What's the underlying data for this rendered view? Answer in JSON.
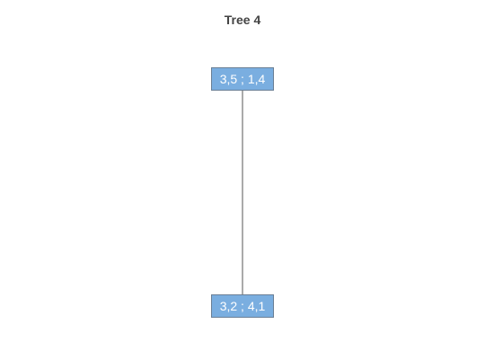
{
  "title": "Tree 4",
  "colors": {
    "node_fill": "#7aaee0",
    "node_border": "#6a7f95",
    "node_text": "#ffffff",
    "edge": "#555555",
    "title_text": "#444444"
  },
  "tree": {
    "nodes": [
      {
        "id": "root",
        "label": "3,5 ; 1,4"
      },
      {
        "id": "child",
        "label": "3,2 ; 4,1"
      }
    ],
    "edges": [
      {
        "from": "root",
        "to": "child"
      }
    ]
  }
}
